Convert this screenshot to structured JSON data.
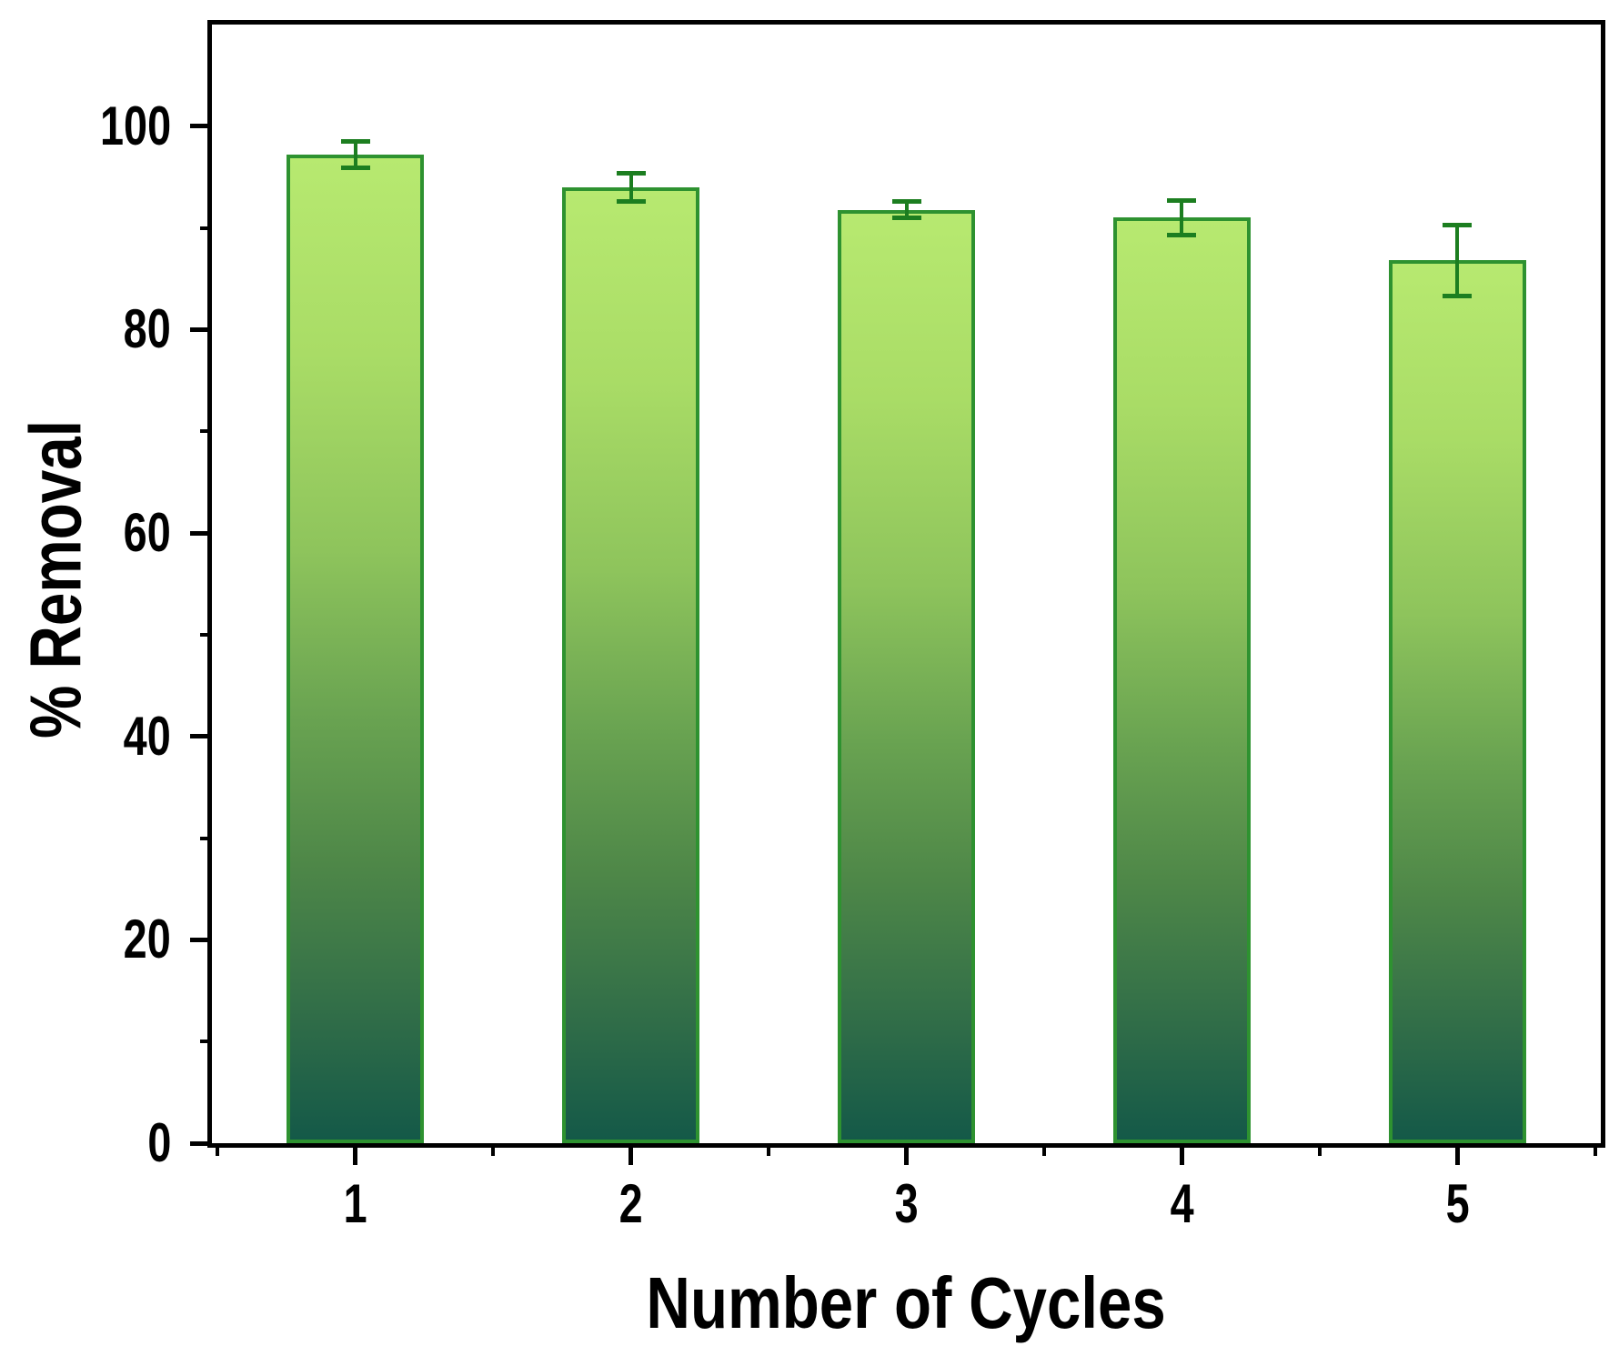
{
  "chart_data": {
    "type": "bar",
    "title": "",
    "xlabel": "Number of Cycles",
    "ylabel": "% Removal",
    "categories": [
      "1",
      "2",
      "3",
      "4",
      "5"
    ],
    "x": [
      1,
      2,
      3,
      4,
      5
    ],
    "values": [
      97.2,
      94.0,
      91.8,
      91.0,
      86.8
    ],
    "errors": [
      1.5,
      1.6,
      1.0,
      1.9,
      3.7
    ],
    "xlim": [
      0.48,
      5.52
    ],
    "ylim": [
      0,
      110
    ],
    "yticks_major": [
      0,
      20,
      40,
      60,
      80,
      100
    ],
    "yticks_minor": [
      10,
      30,
      50,
      70,
      90
    ],
    "xticks_major": [
      1,
      2,
      3,
      4,
      5
    ],
    "xticks_minor": [
      0.5,
      1.5,
      2.5,
      3.5,
      4.5,
      5.5
    ],
    "bar_width_units": 0.5,
    "grid": false,
    "legend": false,
    "colors": {
      "bar_gradient_top": "#b7e970",
      "bar_gradient_mid": "#8ec45c",
      "bar_gradient_low": "#4e8748",
      "bar_gradient_bottom": "#145948",
      "bar_border": "#2e9230",
      "error_bar": "#1c7e20",
      "axis": "#000000",
      "background": "#ffffff"
    }
  }
}
